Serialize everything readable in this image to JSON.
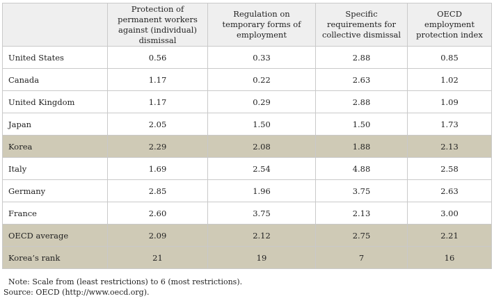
{
  "table": {
    "headers": [
      "",
      "Protection of permanent workers against (individual) dismissal",
      "Regulation on temporary forms of employment",
      "Specific requirements for collective dismissal",
      "OECD employment protection index"
    ],
    "rows": [
      {
        "country": "United States",
        "values": [
          "0.56",
          "0.33",
          "2.88",
          "0.85"
        ],
        "highlight": false
      },
      {
        "country": "Canada",
        "values": [
          "1.17",
          "0.22",
          "2.63",
          "1.02"
        ],
        "highlight": false
      },
      {
        "country": "United Kingdom",
        "values": [
          "1.17",
          "0.29",
          "2.88",
          "1.09"
        ],
        "highlight": false
      },
      {
        "country": "Japan",
        "values": [
          "2.05",
          "1.50",
          "1.50",
          "1.73"
        ],
        "highlight": false
      },
      {
        "country": "Korea",
        "values": [
          "2.29",
          "2.08",
          "1.88",
          "2.13"
        ],
        "highlight": true
      },
      {
        "country": "Italy",
        "values": [
          "1.69",
          "2.54",
          "4.88",
          "2.58"
        ],
        "highlight": false
      },
      {
        "country": "Germany",
        "values": [
          "2.85",
          "1.96",
          "3.75",
          "2.63"
        ],
        "highlight": false
      },
      {
        "country": "France",
        "values": [
          "2.60",
          "3.75",
          "2.13",
          "3.00"
        ],
        "highlight": false
      },
      {
        "country": "OECD average",
        "values": [
          "2.09",
          "2.12",
          "2.75",
          "2.21"
        ],
        "highlight": true
      },
      {
        "country": "Korea’s rank",
        "values": [
          "21",
          "19",
          "7",
          "16"
        ],
        "highlight": true
      }
    ]
  },
  "notes": {
    "note": "Note: Scale from (least restrictions) to 6 (most restrictions).",
    "source": "Source: OECD (http://www.oecd.org)."
  },
  "colors": {
    "header_bg": "#efefef",
    "highlight_bg": "#cfcab6",
    "border": "#c9c9c9"
  }
}
